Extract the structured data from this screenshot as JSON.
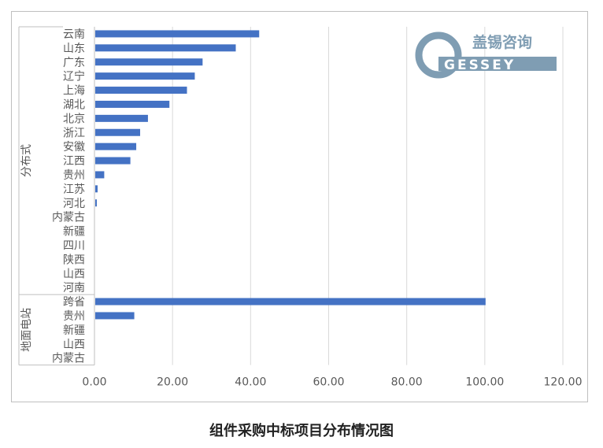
{
  "caption": "组件采购中标项目分布情况图",
  "logo": {
    "cn_text": "盖锡咨询",
    "en_text": "GESSEY",
    "color": "#7f9db3"
  },
  "chart_data": {
    "type": "bar",
    "orientation": "horizontal",
    "bar_color": "#4472c4",
    "xlim": [
      0,
      120
    ],
    "xticks": [
      "0.00",
      "20.00",
      "40.00",
      "60.00",
      "80.00",
      "100.00",
      "120.00"
    ],
    "xtick_values": [
      0,
      20,
      40,
      60,
      80,
      100,
      120
    ],
    "grid": "vertical",
    "groups": [
      {
        "name": "分布式",
        "categories": [
          "云南",
          "山东",
          "广东",
          "辽宁",
          "上海",
          "湖北",
          "北京",
          "浙江",
          "安徽",
          "江西",
          "贵州",
          "江苏",
          "河北",
          "内蒙古",
          "新疆",
          "四川",
          "陕西",
          "山西",
          "河南"
        ],
        "values": [
          42,
          36,
          27.5,
          25.5,
          23.5,
          19,
          13.5,
          11.5,
          10.5,
          9,
          2.3,
          0.6,
          0.4,
          0,
          0,
          0,
          0,
          0,
          0
        ]
      },
      {
        "name": "地面电站",
        "categories": [
          "跨省",
          "贵州",
          "新疆",
          "山西",
          "内蒙古"
        ],
        "values": [
          100,
          10,
          0,
          0,
          0
        ]
      }
    ]
  }
}
